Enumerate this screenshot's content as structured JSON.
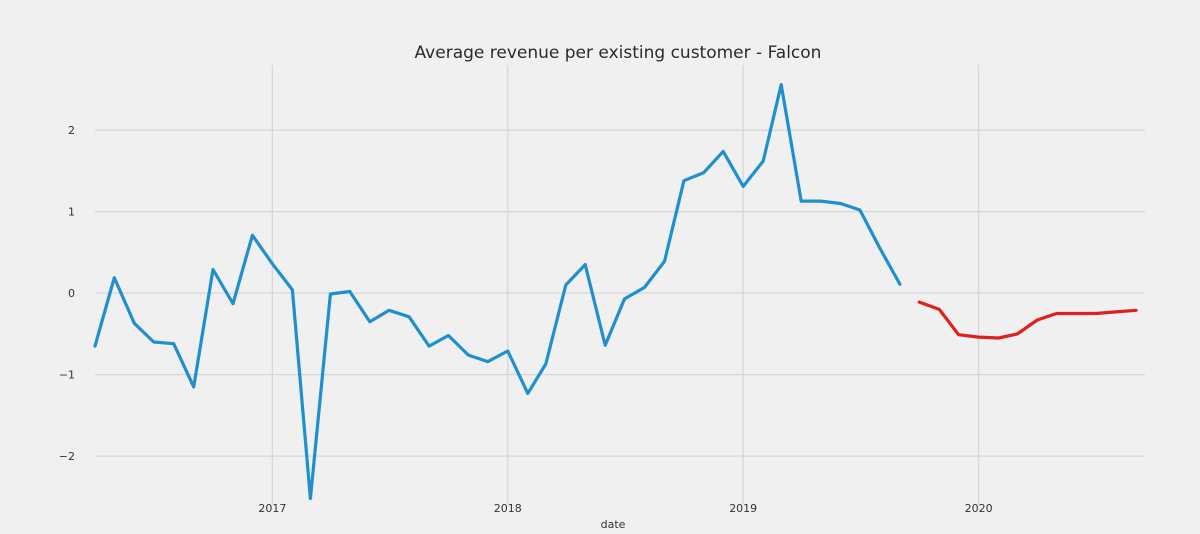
{
  "chart_data": {
    "type": "line",
    "title": "Average revenue per existing customer - Falcon",
    "xlabel": "date",
    "ylabel": "",
    "grid": true,
    "xlim": [
      "2016-04-01",
      "2020-09-15"
    ],
    "ylim": [
      -2.6,
      2.8
    ],
    "x_ticks": [
      {
        "date": "2017-01-01",
        "label": "2017"
      },
      {
        "date": "2018-01-01",
        "label": "2018"
      },
      {
        "date": "2019-01-01",
        "label": "2019"
      },
      {
        "date": "2020-01-01",
        "label": "2020"
      }
    ],
    "y_ticks": [
      {
        "value": 2,
        "label": "2"
      },
      {
        "value": 1,
        "label": "1"
      },
      {
        "value": 0,
        "label": "0"
      },
      {
        "value": -1,
        "label": "−1"
      },
      {
        "value": -2,
        "label": "−2"
      }
    ],
    "series": [
      {
        "color": "#1f8fce",
        "points": [
          [
            "2016-04-01",
            -0.65
          ],
          [
            "2016-05-01",
            0.19
          ],
          [
            "2016-06-01",
            -0.37
          ],
          [
            "2016-07-01",
            -0.6
          ],
          [
            "2016-08-01",
            -0.62
          ],
          [
            "2016-09-01",
            -1.15
          ],
          [
            "2016-10-01",
            0.29
          ],
          [
            "2016-11-01",
            -0.13
          ],
          [
            "2016-12-01",
            0.71
          ],
          [
            "2017-01-01",
            0.36
          ],
          [
            "2017-02-01",
            0.04
          ],
          [
            "2017-03-01",
            -2.52
          ],
          [
            "2017-04-01",
            -0.01
          ],
          [
            "2017-05-01",
            0.02
          ],
          [
            "2017-06-01",
            -0.35
          ],
          [
            "2017-07-01",
            -0.21
          ],
          [
            "2017-08-01",
            -0.29
          ],
          [
            "2017-09-01",
            -0.65
          ],
          [
            "2017-10-01",
            -0.52
          ],
          [
            "2017-11-01",
            -0.76
          ],
          [
            "2017-12-01",
            -0.84
          ],
          [
            "2018-01-01",
            -0.71
          ],
          [
            "2018-02-01",
            -1.23
          ],
          [
            "2018-03-01",
            -0.87
          ],
          [
            "2018-04-01",
            0.1
          ],
          [
            "2018-05-01",
            0.35
          ],
          [
            "2018-06-01",
            -0.64
          ],
          [
            "2018-07-01",
            -0.07
          ],
          [
            "2018-08-01",
            0.07
          ],
          [
            "2018-09-01",
            0.39
          ],
          [
            "2018-10-01",
            1.38
          ],
          [
            "2018-11-01",
            1.48
          ],
          [
            "2018-12-01",
            1.74
          ],
          [
            "2019-01-01",
            1.31
          ],
          [
            "2019-02-01",
            1.62
          ],
          [
            "2019-03-01",
            2.56
          ],
          [
            "2019-04-01",
            1.13
          ],
          [
            "2019-05-01",
            1.13
          ],
          [
            "2019-06-01",
            1.1
          ],
          [
            "2019-07-01",
            1.02
          ],
          [
            "2019-08-01",
            0.55
          ],
          [
            "2019-09-01",
            0.11
          ]
        ]
      },
      {
        "color": "#e0201c",
        "points": [
          [
            "2019-10-01",
            -0.11
          ],
          [
            "2019-11-01",
            -0.2
          ],
          [
            "2019-12-01",
            -0.51
          ],
          [
            "2020-01-01",
            -0.54
          ],
          [
            "2020-02-01",
            -0.55
          ],
          [
            "2020-03-01",
            -0.5
          ],
          [
            "2020-04-01",
            -0.33
          ],
          [
            "2020-05-01",
            -0.25
          ],
          [
            "2020-06-01",
            -0.25
          ],
          [
            "2020-07-01",
            -0.25
          ],
          [
            "2020-08-01",
            -0.23
          ],
          [
            "2020-09-01",
            -0.21
          ]
        ]
      }
    ]
  }
}
